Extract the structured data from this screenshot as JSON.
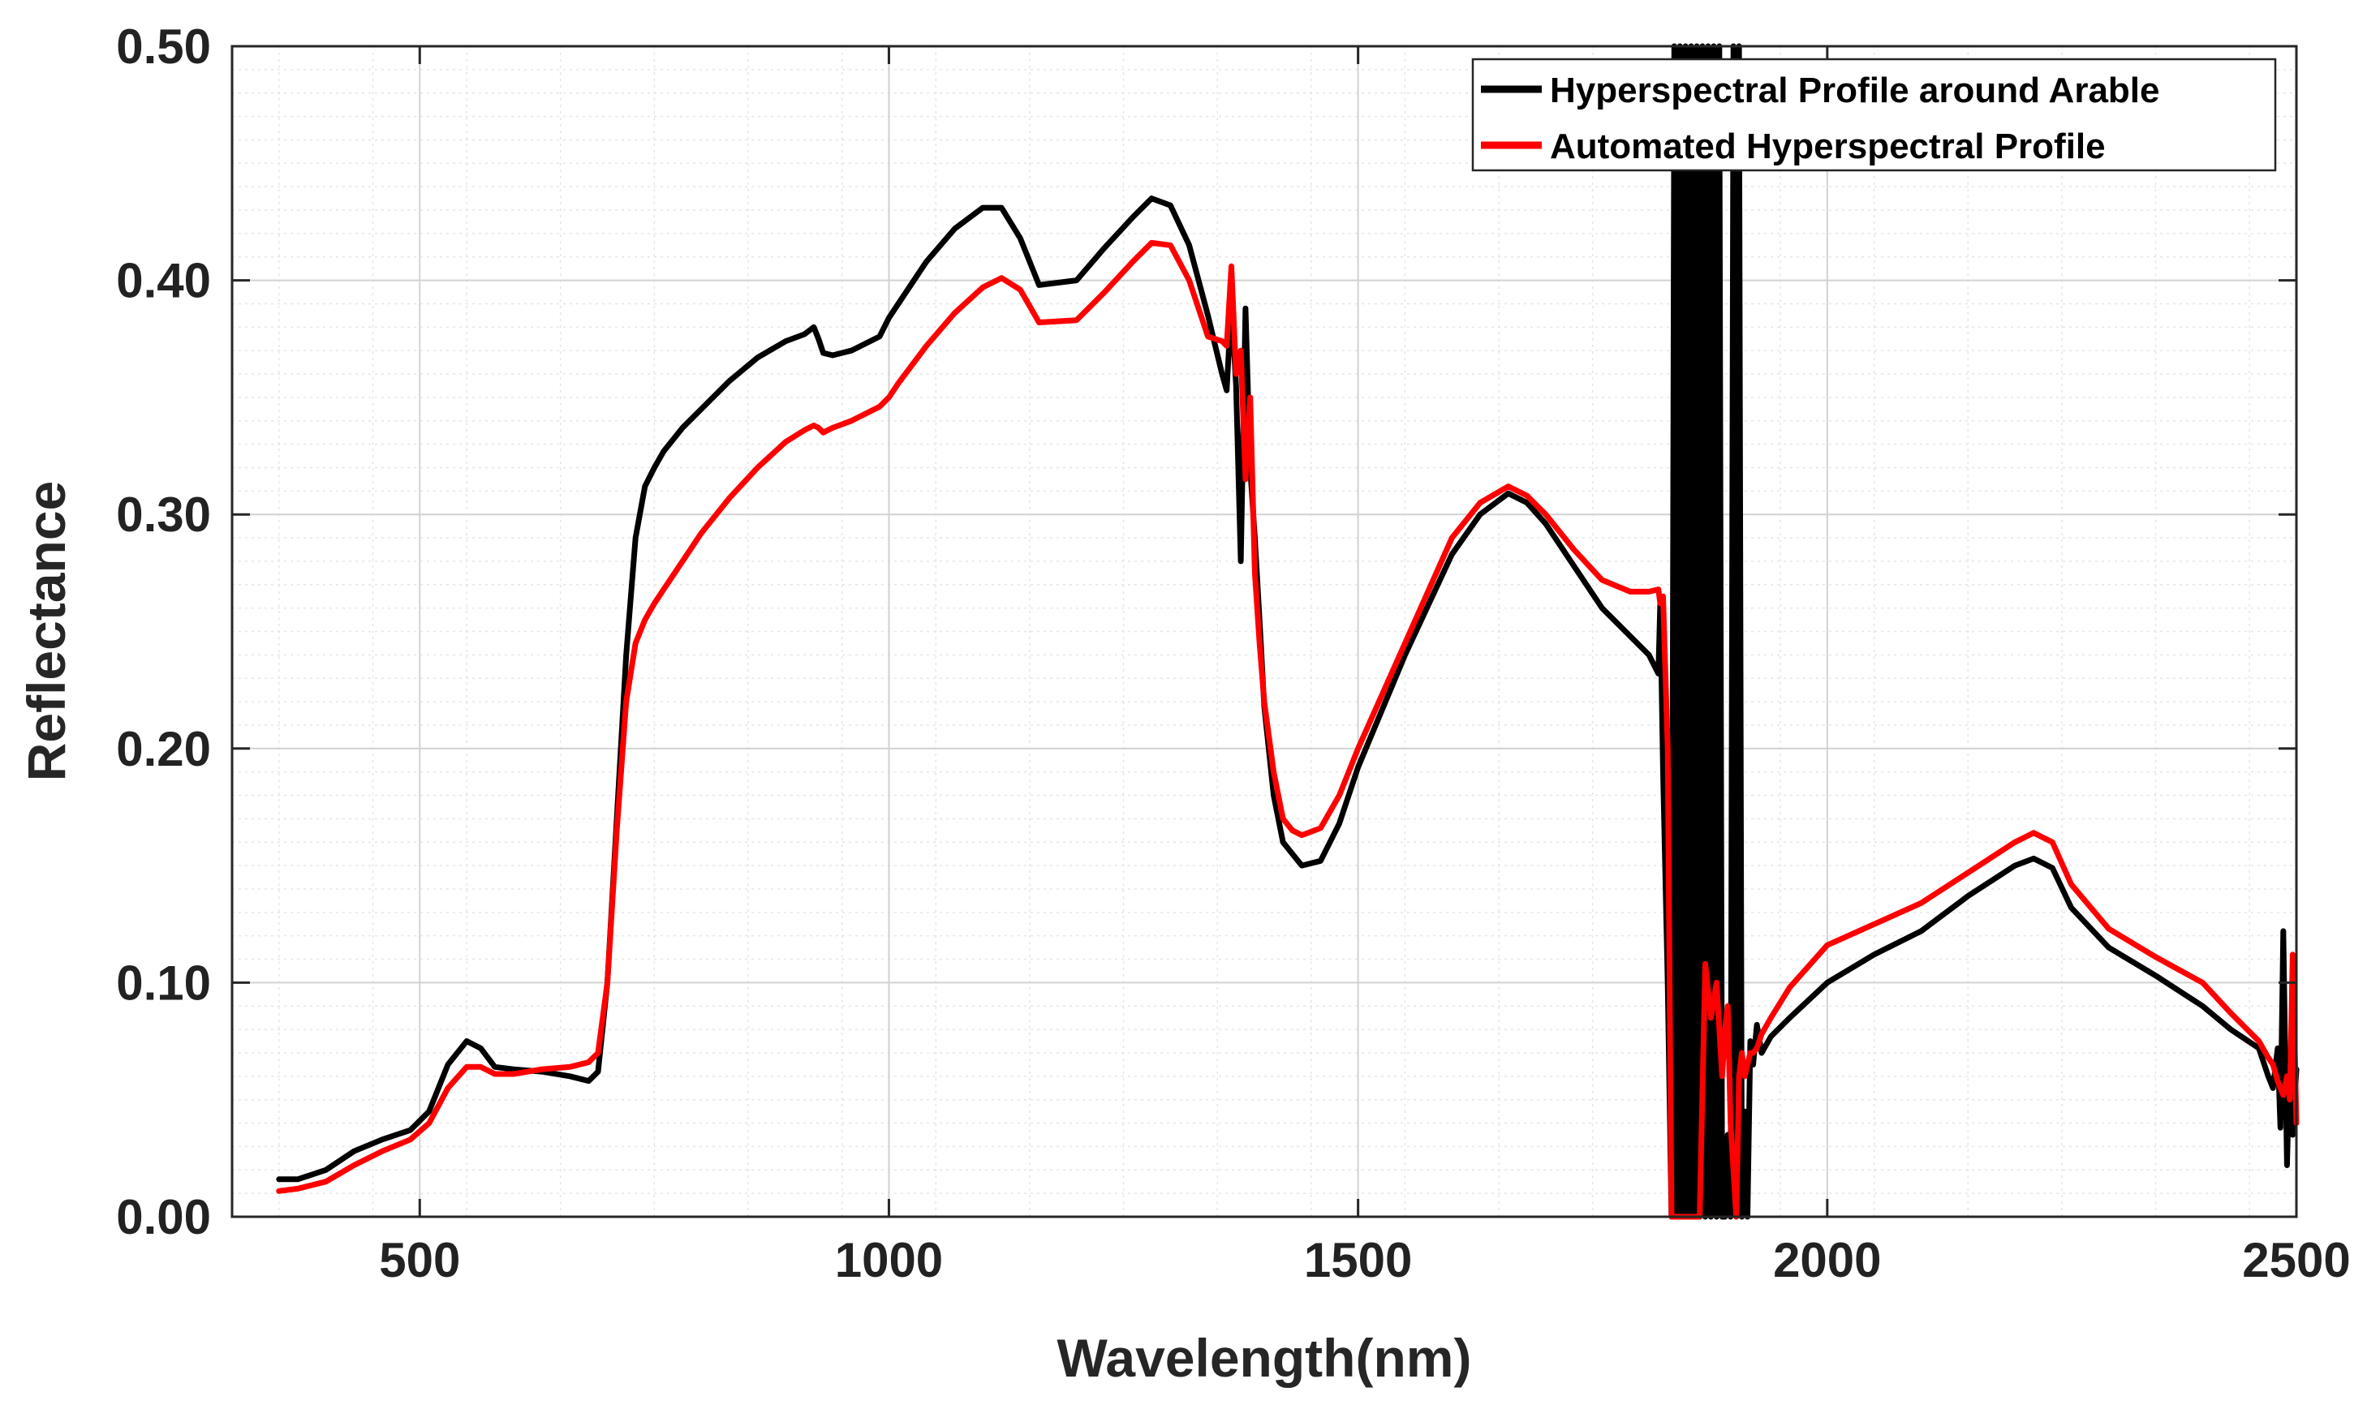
{
  "chart_data": {
    "type": "line",
    "title": "",
    "xlabel": "Wavelength(nm)",
    "ylabel": "Reflectance",
    "xlim": [
      300,
      2500
    ],
    "ylim": [
      0.0,
      0.5
    ],
    "x_ticks": [
      500,
      1000,
      1500,
      2000,
      2500
    ],
    "x_tick_labels": [
      "500",
      "1000",
      "1500",
      "2000",
      "2500"
    ],
    "y_ticks": [
      0.0,
      0.1,
      0.2,
      0.3,
      0.4,
      0.5
    ],
    "y_tick_labels": [
      "0.00",
      "0.10",
      "0.20",
      "0.30",
      "0.40",
      "0.50"
    ],
    "grid": true,
    "minor_grid": true,
    "legend_position": "top-right",
    "series": [
      {
        "name": "Hyperspectral Profile around Arable",
        "color": "#000000",
        "x": [
          350,
          370,
          400,
          430,
          460,
          490,
          510,
          530,
          550,
          565,
          580,
          600,
          630,
          660,
          680,
          690,
          700,
          710,
          720,
          730,
          740,
          750,
          760,
          780,
          800,
          830,
          860,
          890,
          910,
          920,
          925,
          930,
          940,
          960,
          990,
          1000,
          1010,
          1040,
          1070,
          1100,
          1120,
          1140,
          1160,
          1200,
          1230,
          1260,
          1280,
          1300,
          1320,
          1340,
          1355,
          1360,
          1365,
          1370,
          1375,
          1380,
          1385,
          1390,
          1395,
          1400,
          1410,
          1420,
          1430,
          1440,
          1460,
          1480,
          1500,
          1550,
          1600,
          1630,
          1660,
          1680,
          1700,
          1730,
          1760,
          1790,
          1810,
          1820,
          1822,
          1825,
          1830,
          1834,
          1837,
          1840,
          1843,
          1846,
          1849,
          1852,
          1855,
          1858,
          1861,
          1864,
          1867,
          1870,
          1873,
          1876,
          1879,
          1882,
          1885,
          1888,
          1891,
          1894,
          1897,
          1900,
          1903,
          1906,
          1909,
          1912,
          1915,
          1918,
          1921,
          1925,
          1930,
          1940,
          1960,
          2000,
          2050,
          2100,
          2150,
          2200,
          2220,
          2240,
          2260,
          2300,
          2350,
          2400,
          2430,
          2460,
          2470,
          2475,
          2480,
          2483,
          2486,
          2490,
          2493,
          2496,
          2500
        ],
        "values": [
          0.016,
          0.016,
          0.02,
          0.028,
          0.033,
          0.037,
          0.045,
          0.065,
          0.075,
          0.072,
          0.064,
          0.063,
          0.062,
          0.06,
          0.058,
          0.062,
          0.1,
          0.17,
          0.24,
          0.29,
          0.312,
          0.32,
          0.327,
          0.337,
          0.345,
          0.357,
          0.367,
          0.374,
          0.377,
          0.38,
          0.375,
          0.369,
          0.368,
          0.37,
          0.376,
          0.384,
          0.39,
          0.408,
          0.422,
          0.431,
          0.431,
          0.418,
          0.398,
          0.4,
          0.414,
          0.427,
          0.435,
          0.432,
          0.415,
          0.385,
          0.36,
          0.353,
          0.39,
          0.355,
          0.28,
          0.388,
          0.32,
          0.29,
          0.255,
          0.218,
          0.18,
          0.16,
          0.155,
          0.15,
          0.152,
          0.168,
          0.192,
          0.24,
          0.283,
          0.3,
          0.309,
          0.305,
          0.296,
          0.278,
          0.26,
          0.248,
          0.24,
          0.232,
          0.262,
          0.19,
          0.1,
          0.0,
          0.5,
          0.0,
          0.5,
          0.0,
          0.5,
          0.0,
          0.5,
          0.0,
          0.5,
          0.0,
          0.5,
          0.0,
          0.5,
          0.0,
          0.5,
          0.0,
          0.5,
          0.0,
          0.0,
          0.035,
          0.0,
          0.5,
          0.0,
          0.5,
          0.0,
          0.045,
          0.0,
          0.075,
          0.065,
          0.082,
          0.07,
          0.077,
          0.085,
          0.1,
          0.112,
          0.122,
          0.137,
          0.15,
          0.153,
          0.149,
          0.132,
          0.115,
          0.103,
          0.09,
          0.08,
          0.072,
          0.06,
          0.055,
          0.072,
          0.038,
          0.122,
          0.022,
          0.07,
          0.035,
          0.063
        ]
      },
      {
        "name": "Automated Hyperspectral Profile",
        "color": "#ff0000",
        "x": [
          350,
          370,
          400,
          430,
          460,
          490,
          510,
          530,
          550,
          565,
          580,
          600,
          630,
          660,
          680,
          690,
          700,
          710,
          720,
          730,
          740,
          750,
          760,
          780,
          800,
          830,
          860,
          890,
          910,
          920,
          925,
          930,
          940,
          960,
          990,
          1000,
          1010,
          1040,
          1070,
          1100,
          1120,
          1140,
          1160,
          1200,
          1230,
          1260,
          1280,
          1300,
          1320,
          1340,
          1355,
          1360,
          1365,
          1370,
          1375,
          1380,
          1385,
          1390,
          1395,
          1400,
          1410,
          1420,
          1430,
          1440,
          1460,
          1480,
          1500,
          1550,
          1600,
          1630,
          1660,
          1680,
          1700,
          1730,
          1760,
          1790,
          1810,
          1820,
          1822,
          1825,
          1830,
          1834,
          1840,
          1846,
          1852,
          1858,
          1864,
          1870,
          1876,
          1882,
          1888,
          1891,
          1894,
          1897,
          1900,
          1903,
          1906,
          1909,
          1912,
          1915,
          1918,
          1921,
          1925,
          1930,
          1940,
          1960,
          2000,
          2050,
          2100,
          2150,
          2200,
          2220,
          2240,
          2260,
          2300,
          2350,
          2400,
          2430,
          2460,
          2470,
          2475,
          2480,
          2483,
          2486,
          2490,
          2493,
          2496,
          2500
        ],
        "values": [
          0.011,
          0.012,
          0.015,
          0.022,
          0.028,
          0.033,
          0.04,
          0.055,
          0.064,
          0.064,
          0.061,
          0.061,
          0.063,
          0.064,
          0.066,
          0.07,
          0.1,
          0.165,
          0.22,
          0.245,
          0.255,
          0.262,
          0.268,
          0.28,
          0.292,
          0.307,
          0.32,
          0.331,
          0.336,
          0.338,
          0.337,
          0.335,
          0.337,
          0.34,
          0.346,
          0.35,
          0.356,
          0.372,
          0.386,
          0.397,
          0.401,
          0.396,
          0.382,
          0.383,
          0.395,
          0.408,
          0.416,
          0.415,
          0.4,
          0.376,
          0.374,
          0.372,
          0.406,
          0.36,
          0.37,
          0.315,
          0.35,
          0.275,
          0.245,
          0.22,
          0.19,
          0.17,
          0.165,
          0.163,
          0.166,
          0.18,
          0.2,
          0.245,
          0.29,
          0.305,
          0.312,
          0.308,
          0.3,
          0.285,
          0.272,
          0.267,
          0.267,
          0.268,
          0.262,
          0.265,
          0.2,
          0.0,
          0.0,
          0.0,
          0.0,
          0.0,
          0.0,
          0.108,
          0.085,
          0.1,
          0.06,
          0.08,
          0.09,
          0.04,
          0.02,
          0.0,
          0.06,
          0.07,
          0.06,
          0.065,
          0.07,
          0.07,
          0.072,
          0.078,
          0.085,
          0.098,
          0.116,
          0.125,
          0.134,
          0.147,
          0.16,
          0.164,
          0.16,
          0.142,
          0.123,
          0.111,
          0.1,
          0.087,
          0.075,
          0.068,
          0.065,
          0.058,
          0.055,
          0.052,
          0.06,
          0.05,
          0.112,
          0.04
        ]
      }
    ]
  }
}
